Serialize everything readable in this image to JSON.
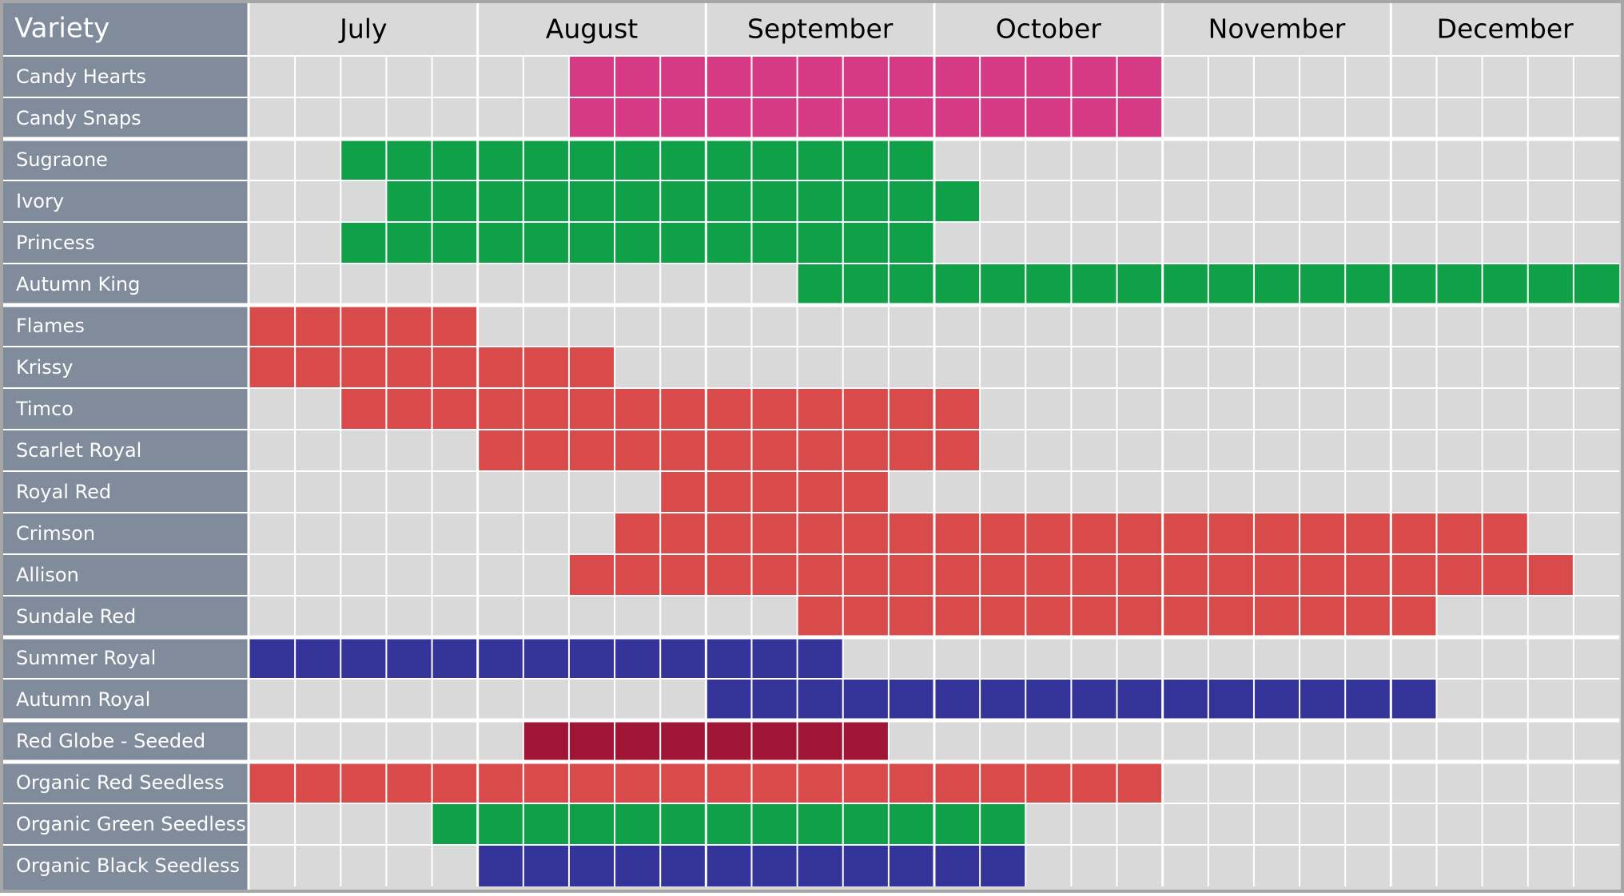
{
  "header": {
    "label": "Variety",
    "months": [
      "July",
      "August",
      "September",
      "October",
      "November",
      "December"
    ],
    "weeks_per_month": 5
  },
  "groups": [
    {
      "rows": [
        {
          "label": "Candy Hearts",
          "start": 7,
          "end": 20,
          "color": "#d63a84"
        },
        {
          "label": "Candy Snaps",
          "start": 7,
          "end": 20,
          "color": "#d63a84"
        }
      ]
    },
    {
      "rows": [
        {
          "label": "Sugraone",
          "start": 2,
          "end": 15,
          "color": "#10a047"
        },
        {
          "label": "Ivory",
          "start": 3,
          "end": 16,
          "color": "#10a047"
        },
        {
          "label": "Princess",
          "start": 2,
          "end": 15,
          "color": "#10a047"
        },
        {
          "label": "Autumn King",
          "start": 12,
          "end": 30,
          "color": "#10a047"
        }
      ]
    },
    {
      "rows": [
        {
          "label": "Flames",
          "start": 0,
          "end": 5,
          "color": "#d94b4b"
        },
        {
          "label": "Krissy",
          "start": 0,
          "end": 8,
          "color": "#d94b4b"
        },
        {
          "label": "Timco",
          "start": 2,
          "end": 16,
          "color": "#d94b4b"
        },
        {
          "label": "Scarlet Royal",
          "start": 5,
          "end": 16,
          "color": "#d94b4b"
        },
        {
          "label": "Royal Red",
          "start": 9,
          "end": 14,
          "color": "#d94b4b"
        },
        {
          "label": "Crimson",
          "start": 8,
          "end": 28,
          "color": "#d94b4b"
        },
        {
          "label": "Allison",
          "start": 7,
          "end": 29,
          "color": "#d94b4b"
        },
        {
          "label": "Sundale Red",
          "start": 12,
          "end": 26,
          "color": "#d94b4b"
        }
      ]
    },
    {
      "rows": [
        {
          "label": "Summer Royal",
          "start": 0,
          "end": 13,
          "color": "#333399"
        },
        {
          "label": "Autumn Royal",
          "start": 10,
          "end": 26,
          "color": "#333399"
        }
      ]
    },
    {
      "rows": [
        {
          "label": "Red Globe - Seeded",
          "start": 6,
          "end": 14,
          "color": "#9e1535"
        }
      ]
    },
    {
      "rows": [
        {
          "label": "Organic Red Seedless",
          "start": 0,
          "end": 20,
          "color": "#d94b4b"
        },
        {
          "label": "Organic Green Seedless",
          "start": 4,
          "end": 17,
          "color": "#10a047"
        },
        {
          "label": "Organic Black Seedless",
          "start": 5,
          "end": 17,
          "color": "#333399"
        }
      ]
    }
  ]
}
